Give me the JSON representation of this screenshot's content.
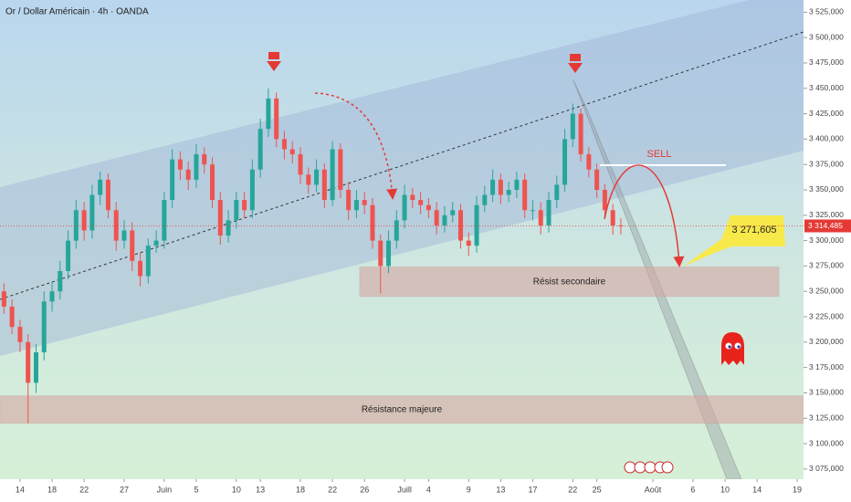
{
  "chart_data": {
    "type": "candlestick",
    "title": "Or / Dollar Américain · 4h · OANDA",
    "x": [
      12,
      13,
      14,
      15,
      16,
      17,
      18,
      19,
      20,
      21,
      22,
      23,
      24,
      25,
      26,
      27,
      28,
      29,
      30,
      31,
      32,
      33,
      34,
      35,
      36,
      37,
      38,
      39,
      40,
      41,
      42,
      43,
      44,
      45,
      46,
      47,
      48,
      49,
      50,
      51,
      52,
      53,
      54,
      55,
      56,
      57,
      58,
      59,
      60,
      61,
      62,
      63,
      64,
      65,
      66,
      67,
      68,
      69,
      70,
      71,
      72,
      73,
      74,
      75,
      76,
      77,
      78,
      79,
      80,
      81,
      82,
      83,
      84,
      85,
      86,
      87,
      88,
      89
    ],
    "open": [
      3250,
      3235,
      3215,
      3200,
      3160,
      3190,
      3240,
      3250,
      3270,
      3300,
      3330,
      3310,
      3345,
      3360,
      3330,
      3300,
      3310,
      3280,
      3265,
      3295,
      3300,
      3340,
      3380,
      3370,
      3360,
      3385,
      3375,
      3340,
      3305,
      3320,
      3340,
      3330,
      3370,
      3410,
      3440,
      3400,
      3390,
      3385,
      3365,
      3355,
      3370,
      3340,
      3390,
      3350,
      3330,
      3340,
      3335,
      3300,
      3275,
      3300,
      3320,
      3345,
      3340,
      3335,
      3330,
      3315,
      3325,
      3330,
      3300,
      3295,
      3335,
      3345,
      3360,
      3345,
      3350,
      3360,
      3330,
      3330,
      3315,
      3340,
      3355,
      3400,
      3425,
      3385,
      3370,
      3350,
      3330,
      3315
    ],
    "high": [
      3258,
      3242,
      3222,
      3208,
      3198,
      3250,
      3260,
      3280,
      3310,
      3340,
      3338,
      3355,
      3368,
      3366,
      3338,
      3320,
      3318,
      3288,
      3302,
      3310,
      3348,
      3390,
      3388,
      3378,
      3395,
      3392,
      3382,
      3348,
      3330,
      3348,
      3348,
      3380,
      3420,
      3450,
      3446,
      3408,
      3398,
      3392,
      3372,
      3380,
      3376,
      3398,
      3396,
      3358,
      3350,
      3348,
      3342,
      3306,
      3310,
      3330,
      3355,
      3352,
      3348,
      3342,
      3338,
      3334,
      3338,
      3336,
      3308,
      3344,
      3354,
      3370,
      3366,
      3358,
      3368,
      3366,
      3340,
      3338,
      3348,
      3364,
      3410,
      3435,
      3430,
      3392,
      3376,
      3356,
      3336,
      3322
    ],
    "low": [
      3228,
      3208,
      3190,
      3120,
      3150,
      3182,
      3230,
      3242,
      3262,
      3292,
      3300,
      3302,
      3335,
      3322,
      3290,
      3292,
      3270,
      3255,
      3258,
      3288,
      3292,
      3332,
      3360,
      3350,
      3352,
      3366,
      3332,
      3296,
      3298,
      3312,
      3322,
      3322,
      3362,
      3402,
      3392,
      3380,
      3376,
      3356,
      3346,
      3348,
      3332,
      3334,
      3342,
      3320,
      3322,
      3326,
      3292,
      3248,
      3268,
      3292,
      3312,
      3332,
      3326,
      3322,
      3306,
      3308,
      3318,
      3292,
      3285,
      3288,
      3328,
      3338,
      3336,
      3338,
      3342,
      3322,
      3320,
      3306,
      3308,
      3332,
      3348,
      3392,
      3378,
      3362,
      3342,
      3322,
      3306,
      3306
    ],
    "close": [
      3235,
      3215,
      3200,
      3160,
      3190,
      3240,
      3250,
      3270,
      3300,
      3330,
      3310,
      3345,
      3360,
      3330,
      3300,
      3310,
      3280,
      3265,
      3295,
      3300,
      3340,
      3380,
      3370,
      3360,
      3385,
      3375,
      3340,
      3305,
      3320,
      3340,
      3330,
      3370,
      3410,
      3440,
      3400,
      3390,
      3385,
      3365,
      3355,
      3370,
      3340,
      3390,
      3350,
      3330,
      3340,
      3335,
      3300,
      3275,
      3300,
      3320,
      3345,
      3340,
      3335,
      3330,
      3315,
      3325,
      3330,
      3300,
      3295,
      3335,
      3345,
      3360,
      3345,
      3350,
      3360,
      3330,
      3330,
      3315,
      3340,
      3355,
      3400,
      3425,
      3385,
      3370,
      3350,
      3330,
      3315,
      3314
    ],
    "up_color": "#26a69a",
    "down_color": "#ef5350",
    "xlim": [
      11.5,
      111.8
    ],
    "xticks": [
      14,
      18,
      22,
      27,
      {
        "value": 32,
        "label": "Juin"
      },
      {
        "value": 36,
        "label": "5"
      },
      {
        "value": 41,
        "label": "10"
      },
      {
        "value": 44,
        "label": "13"
      },
      {
        "value": 49,
        "label": "18"
      },
      {
        "value": 53,
        "label": "22"
      },
      {
        "value": 57,
        "label": "26"
      },
      {
        "value": 62,
        "label": "Juill"
      },
      {
        "value": 65,
        "label": "4"
      },
      {
        "value": 70,
        "label": "9"
      },
      {
        "value": 74,
        "label": "13"
      },
      {
        "value": 78,
        "label": "17"
      },
      {
        "value": 83,
        "label": "22"
      },
      {
        "value": 86,
        "label": "25"
      },
      {
        "value": 93,
        "label": "Août"
      },
      {
        "value": 98,
        "label": "6"
      },
      {
        "value": 102,
        "label": "10"
      },
      {
        "value": 106,
        "label": "14"
      },
      {
        "value": 111,
        "label": "19"
      }
    ],
    "ylim": [
      3065,
      3537
    ],
    "yticks": [
      {
        "value": 3525,
        "label": "3 525,000"
      },
      {
        "value": 3500,
        "label": "3 500,000"
      },
      {
        "value": 3475,
        "label": "3 475,000"
      },
      {
        "value": 3450,
        "label": "3 450,000"
      },
      {
        "value": 3425,
        "label": "3 425,000"
      },
      {
        "value": 3400,
        "label": "3 400,000"
      },
      {
        "value": 3375,
        "label": "3 375,000"
      },
      {
        "value": 3350,
        "label": "3 350,000"
      },
      {
        "value": 3325,
        "label": "3 325,000"
      },
      {
        "value": 3300,
        "label": "3 300,000"
      },
      {
        "value": 3275,
        "label": "3 275,000"
      },
      {
        "value": 3250,
        "label": "3 250,000"
      },
      {
        "value": 3225,
        "label": "3 225,000"
      },
      {
        "value": 3200,
        "label": "3 200,000"
      },
      {
        "value": 3175,
        "label": "3 175,000"
      },
      {
        "value": 3150,
        "label": "3 150,000"
      },
      {
        "value": 3125,
        "label": "3 125,000"
      },
      {
        "value": 3100,
        "label": "3 100,000"
      },
      {
        "value": 3075,
        "label": "3 075,000"
      }
    ],
    "current_price": {
      "value": 3314.485,
      "label": "3 314,485",
      "color": "#e53935"
    },
    "target": {
      "value": 3271.605,
      "label": "3 271,605"
    },
    "sell_label": "SELL",
    "zones": [
      {
        "label": "Résist secondaire",
        "range": [
          3245,
          3274
        ]
      },
      {
        "label": "Résistance majeure",
        "range": [
          3120,
          3147
        ]
      }
    ]
  }
}
